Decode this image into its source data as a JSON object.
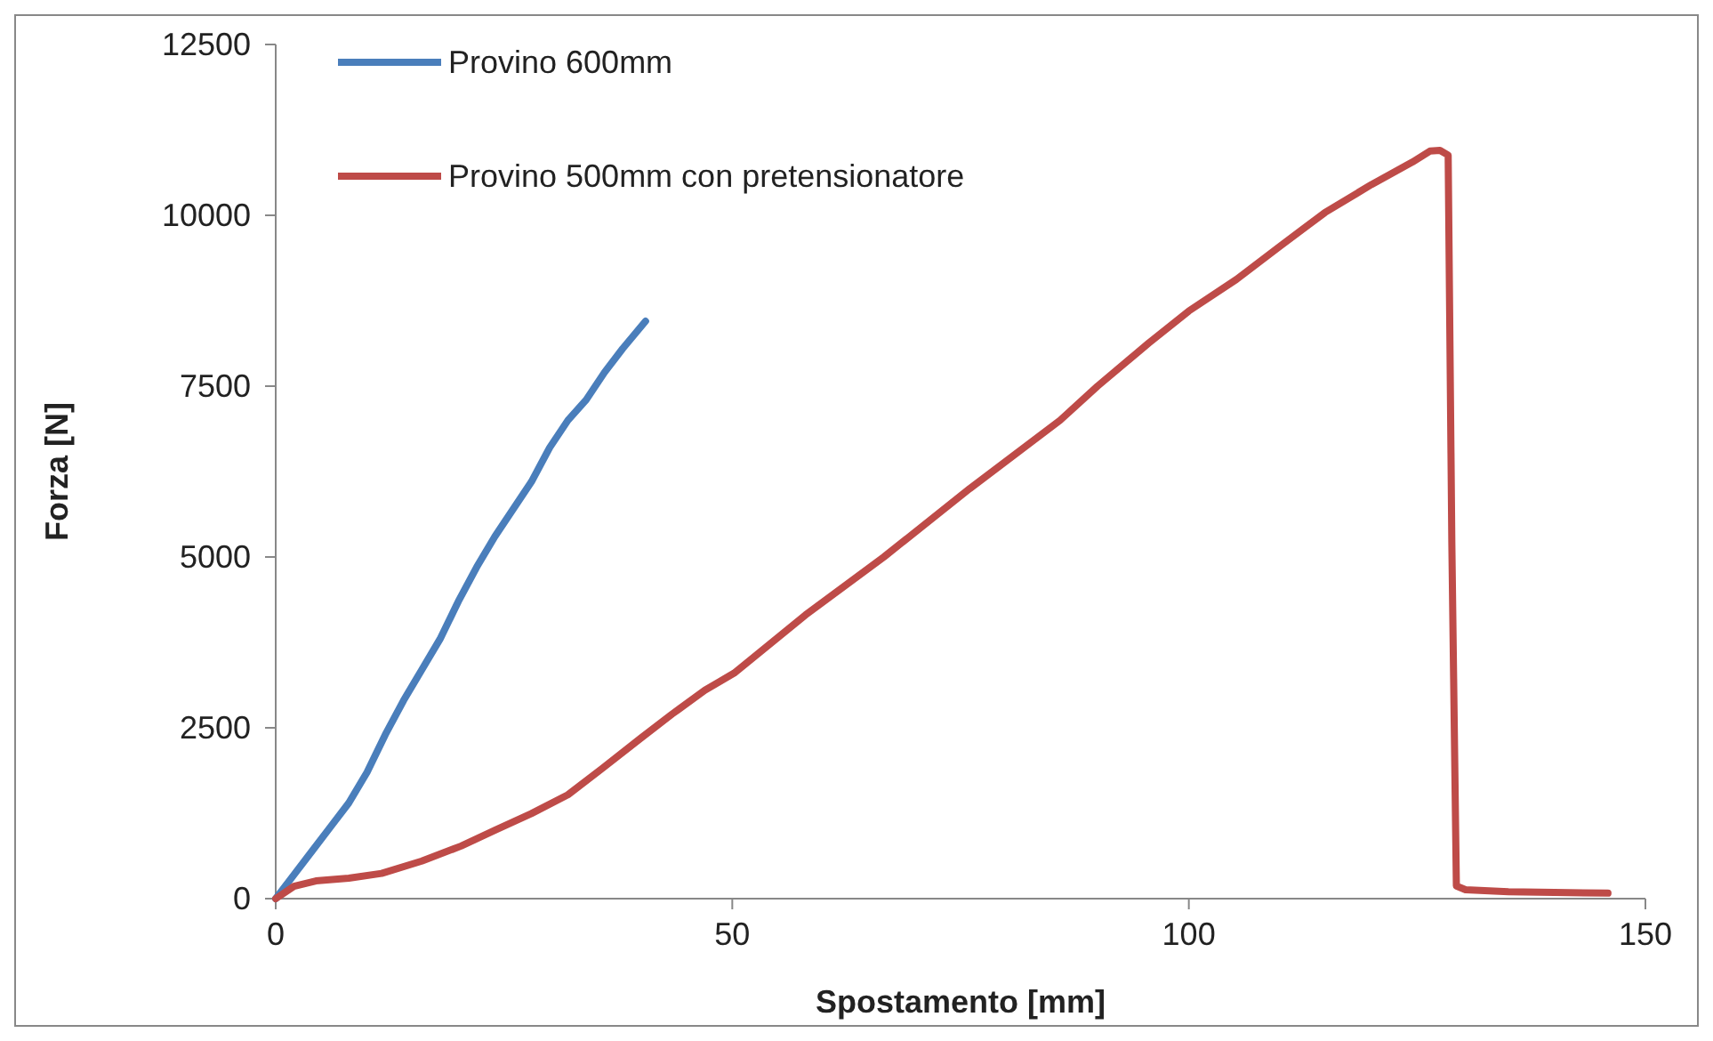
{
  "chart_data": {
    "type": "line",
    "xlabel": "Spostamento [mm]",
    "ylabel": "Forza [N]",
    "xlim": [
      0,
      150
    ],
    "xticks": [
      0,
      50,
      100,
      150
    ],
    "ylim": [
      0,
      12500
    ],
    "yticks": [
      0,
      2500,
      5000,
      7500,
      10000,
      12500
    ],
    "grid": false,
    "legend": "top left",
    "line_style": "solid",
    "marker": "none",
    "series": [
      {
        "name": "Provino 600mm",
        "color": "#4a7ebb",
        "x": [
          0,
          2,
          4,
          6,
          8,
          10,
          12,
          14,
          16,
          18,
          20,
          22,
          24,
          26,
          28,
          30,
          32,
          34,
          36,
          38,
          40.5
        ],
        "values": [
          0,
          350,
          700,
          1050,
          1400,
          1850,
          2400,
          2900,
          3350,
          3800,
          4350,
          4850,
          5300,
          5700,
          6100,
          6600,
          7000,
          7300,
          7700,
          8050,
          8450
        ]
      },
      {
        "name": "Provino 500mm con pretensionatore",
        "color": "#be4b48",
        "x": [
          0,
          2,
          4.4,
          8,
          11.6,
          16,
          20.3,
          24,
          28,
          32,
          35.7,
          40,
          43.4,
          47,
          50.2,
          58,
          66.6,
          76,
          85.9,
          90,
          95.6,
          100,
          105.2,
          110,
          114.9,
          120,
          124.5,
          126.4,
          127.5,
          128.4,
          128.8,
          129.3,
          130.3,
          135,
          140,
          145.9
        ],
        "values": [
          0,
          180,
          260,
          300,
          370,
          550,
          770,
          1000,
          1245,
          1520,
          1900,
          2350,
          2700,
          3050,
          3300,
          4150,
          5000,
          6000,
          7000,
          7500,
          8130,
          8600,
          9060,
          9550,
          10040,
          10450,
          10780,
          10940,
          10950,
          10880,
          5220,
          185,
          130,
          100,
          90,
          80
        ]
      }
    ]
  }
}
